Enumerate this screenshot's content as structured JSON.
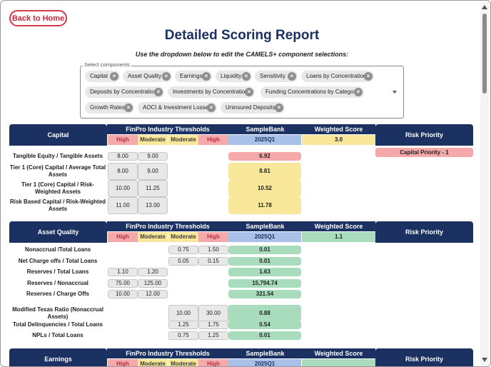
{
  "header": {
    "back_button": "Back to Home",
    "title": "Detailed Scoring Report",
    "subtitle": "Use the dropdown below to edit the CAMELS+ component selections:"
  },
  "selector": {
    "legend": "Select components",
    "chips": [
      "Capital",
      "Asset Quality",
      "Earnings",
      "Liquidity",
      "Sensitivity",
      "Loans by Concentration",
      "Deposits by Concentration",
      "Investments by Concentration",
      "Funding Concentrations by Category",
      "Growth Rates",
      "AOCI & Investment Losses",
      "Uninsured Deposits"
    ],
    "remove_glyph": "×"
  },
  "table_headers": {
    "industry_thresholds": "FinPro Industry Thresholds",
    "bank_name": "SampleBank",
    "weighted_score": "Weighted Score",
    "risk_priority": "Risk Priority",
    "high": "High",
    "moderate": "Moderate",
    "period": "2025Q1"
  },
  "sections": [
    {
      "name": "Capital",
      "score": "3.0",
      "score_color": "#f9e79a",
      "risk": "Capital Priority - 1",
      "rows": [
        {
          "label": "Tangible Equity / Tangible Assets",
          "t1": "8.00",
          "t2": "9.00",
          "t3": "",
          "t4": "",
          "value": "6.92",
          "status": "red"
        },
        {
          "label": "Tier 1 (Core) Capital / Average Total Assets",
          "t1": "8.00",
          "t2": "9.00",
          "t3": "",
          "t4": "",
          "value": "8.81",
          "status": "yellow"
        },
        {
          "label": "Tier 1 (Core) Capital / Risk-Weighted Assets",
          "t1": "10.00",
          "t2": "11.25",
          "t3": "",
          "t4": "",
          "value": "10.52",
          "status": "yellow"
        },
        {
          "label": "Risk Based Capital / Risk-Weighted Assets",
          "t1": "11.00",
          "t2": "13.00",
          "t3": "",
          "t4": "",
          "value": "11.78",
          "status": "yellow"
        }
      ]
    },
    {
      "name": "Asset Quality",
      "score": "1.1",
      "score_color": "#a8dcbc",
      "risk": "",
      "rows": [
        {
          "label": "Nonaccrual /Total Loans",
          "t1": "",
          "t2": "",
          "t3": "0.75",
          "t4": "1.50",
          "value": "0.01",
          "status": "green"
        },
        {
          "label": "Net Charge offs / Total Loans",
          "t1": "",
          "t2": "",
          "t3": "0.05",
          "t4": "0.15",
          "value": "0.01",
          "status": "green"
        },
        {
          "label": "Reserves / Total Loans",
          "t1": "1.10",
          "t2": "1.20",
          "t3": "",
          "t4": "",
          "value": "1.63",
          "status": "green"
        },
        {
          "label": "Reserves / Nonaccrual",
          "t1": "75.00",
          "t2": "125.00",
          "t3": "",
          "t4": "",
          "value": "15,794.74",
          "status": "green"
        },
        {
          "label": "Reserves / Charge Offs",
          "t1": "10.00",
          "t2": "12.00",
          "t3": "",
          "t4": "",
          "value": "321.54",
          "status": "green"
        },
        {
          "label": "Modified Texas Ratio (Nonaccrual Assets)",
          "t1": "",
          "t2": "",
          "t3": "10.00",
          "t4": "30.00",
          "value": "0.88",
          "status": "green"
        },
        {
          "label": "Total Delinquencies / Total Loans",
          "t1": "",
          "t2": "",
          "t3": "1.25",
          "t4": "1.75",
          "value": "0.54",
          "status": "green"
        },
        {
          "label": "NPLs / Total Loans",
          "t1": "",
          "t2": "",
          "t3": "0.75",
          "t4": "1.25",
          "value": "0.01",
          "status": "green"
        }
      ]
    },
    {
      "name": "Earnings",
      "score": "",
      "score_color": "#a8dcbc",
      "risk": "",
      "rows": []
    }
  ]
}
